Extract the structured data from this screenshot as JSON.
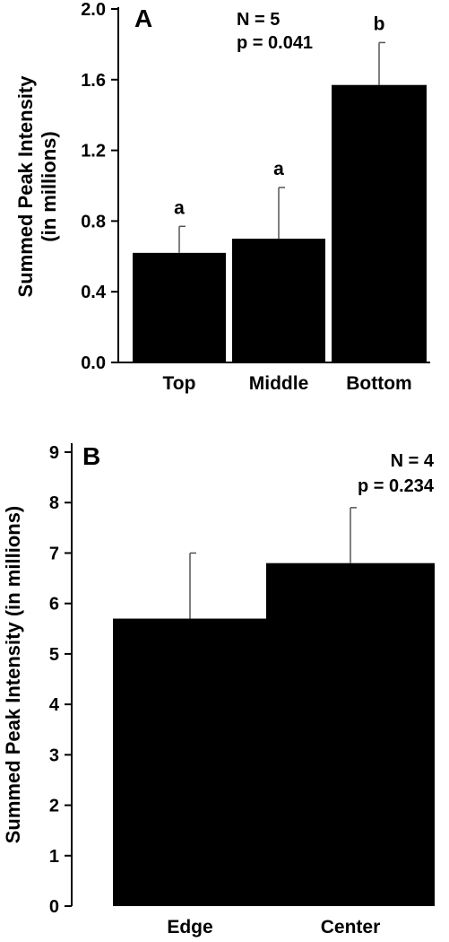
{
  "chart_data": [
    {
      "panel": "A",
      "type": "bar",
      "categories": [
        "Top",
        "Middle",
        "Bottom"
      ],
      "values": [
        0.62,
        0.7,
        1.57
      ],
      "errors": [
        0.15,
        0.29,
        0.24
      ],
      "group_labels": [
        "a",
        "a",
        "b"
      ],
      "ylabel": [
        "Summed Peak Intensity",
        "(in millions)"
      ],
      "ylim": [
        0,
        2.0
      ],
      "yticks": [
        "0.0",
        "0.4",
        "0.8",
        "1.2",
        "1.6",
        "2.0"
      ],
      "annotation": [
        "N = 5",
        "p = 0.041"
      ],
      "bar_color": "#000000",
      "grid": false
    },
    {
      "panel": "B",
      "type": "bar",
      "categories": [
        "Edge",
        "Center"
      ],
      "values": [
        5.7,
        6.8
      ],
      "errors": [
        1.3,
        1.1
      ],
      "ylabel": [
        "Summed Peak Intensity (in millions)"
      ],
      "ylim": [
        0,
        9
      ],
      "yticks": [
        "0",
        "1",
        "2",
        "3",
        "4",
        "5",
        "6",
        "7",
        "8",
        "9"
      ],
      "annotation": [
        "N = 4",
        "p = 0.234"
      ],
      "bar_color": "#000000",
      "grid": false
    }
  ]
}
